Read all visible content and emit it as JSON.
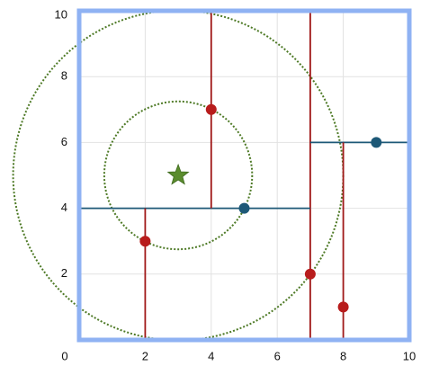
{
  "chart_data": {
    "type": "scatter",
    "xlim": [
      0,
      10
    ],
    "ylim": [
      0,
      10
    ],
    "xticks": [
      0,
      2,
      4,
      6,
      8,
      10
    ],
    "yticks": [
      2,
      4,
      6,
      8,
      10
    ],
    "grid": true,
    "series": [
      {
        "color": "#b81c1c",
        "x": [
          2,
          4,
          7,
          8
        ],
        "values": [
          3,
          7,
          2,
          1
        ]
      },
      {
        "color": "#1d5877",
        "x": [
          5,
          9
        ],
        "values": [
          4,
          6
        ]
      }
    ],
    "splits": [
      {
        "axis": "x",
        "value": 7,
        "range": [
          0,
          10
        ],
        "color": "#a01818"
      },
      {
        "axis": "y",
        "value": 4,
        "range": [
          0,
          7
        ],
        "color": "#1d5877"
      },
      {
        "axis": "x",
        "value": 4,
        "range": [
          4,
          10
        ],
        "color": "#a01818"
      },
      {
        "axis": "x",
        "value": 2,
        "range": [
          0,
          4
        ],
        "color": "#a01818"
      },
      {
        "axis": "y",
        "value": 6,
        "range": [
          7,
          10
        ],
        "color": "#1d5877"
      },
      {
        "axis": "x",
        "value": 8,
        "range": [
          0,
          6
        ],
        "color": "#a01818"
      }
    ],
    "query": {
      "x": 3,
      "y": 5,
      "color": "#5b8c2e"
    },
    "circles": [
      {
        "x": 3,
        "y": 5,
        "r": 2.24,
        "color": "#4e7a26"
      },
      {
        "x": 3,
        "y": 5,
        "r": 5,
        "color": "#4e7a26"
      }
    ]
  }
}
